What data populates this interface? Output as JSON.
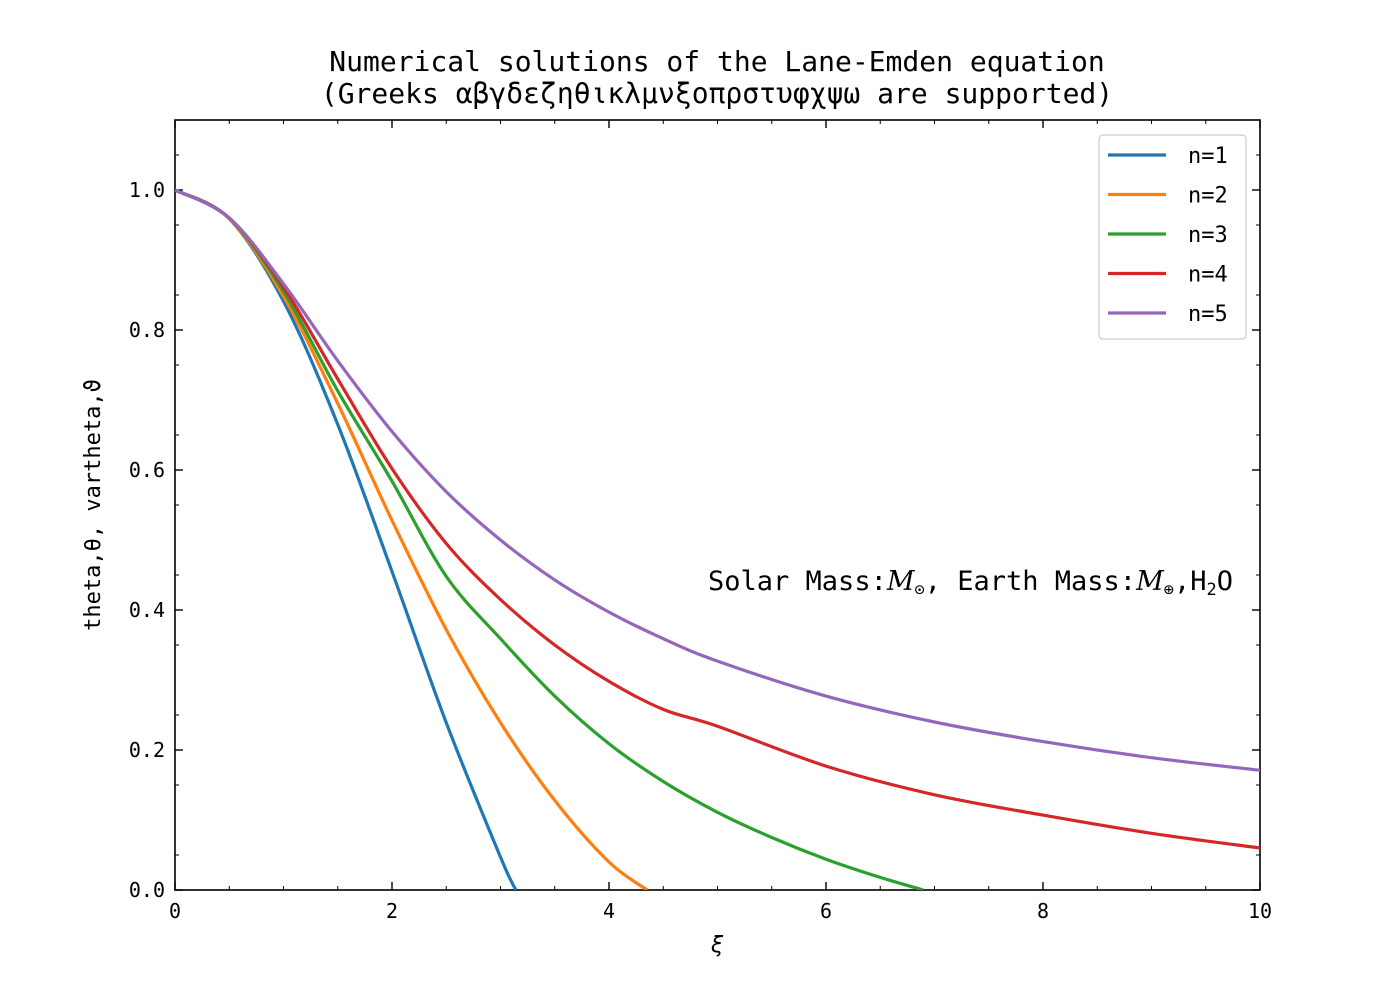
{
  "chart_data": {
    "type": "line",
    "title": "Numerical solutions of the Lane-Emden equation",
    "subtitle": "(Greeks αβγδεζηθικλμνξοπρστυφχψω are supported)",
    "xlabel": "ξ",
    "ylabel": "theta,θ, vartheta,ϑ",
    "xlim": [
      0,
      10
    ],
    "ylim": [
      0,
      1.1
    ],
    "xticks": [
      0,
      2,
      4,
      6,
      8,
      10
    ],
    "xtick_labels": [
      "0",
      "2",
      "4",
      "6",
      "8",
      "10"
    ],
    "yticks": [
      0.0,
      0.2,
      0.4,
      0.6,
      0.8,
      1.0
    ],
    "ytick_labels": [
      "0.0",
      "0.2",
      "0.4",
      "0.6",
      "0.8",
      "1.0"
    ],
    "grid": false,
    "legend_position": "top-right",
    "annotation": {
      "prefix": "Solar Mass:",
      "sun_symbol": "M",
      "sun_sub": "⊙",
      "middle": ", Earth Mass:",
      "earth_symbol": "M",
      "earth_sub": "⊕",
      "suffix_a": ",H",
      "suffix_sub": "2",
      "suffix_b": "O"
    },
    "series": [
      {
        "name": "n=1",
        "color": "#1f77b4",
        "x": [
          0,
          0.5,
          1,
          1.5,
          2,
          2.5,
          3,
          3.1416
        ],
        "y": [
          1.0,
          0.959,
          0.841,
          0.665,
          0.455,
          0.239,
          0.047,
          0.0
        ]
      },
      {
        "name": "n=2",
        "color": "#ff7f0e",
        "x": [
          0,
          0.5,
          1,
          1.5,
          2,
          2.5,
          3,
          3.5,
          4,
          4.353
        ],
        "y": [
          1.0,
          0.959,
          0.848,
          0.695,
          0.528,
          0.372,
          0.239,
          0.128,
          0.04,
          0.0
        ]
      },
      {
        "name": "n=3",
        "color": "#2ca02c",
        "x": [
          0,
          0.5,
          1,
          1.5,
          2,
          2.5,
          3,
          3.5,
          4,
          4.5,
          5,
          5.5,
          6,
          6.5,
          6.897
        ],
        "y": [
          1.0,
          0.96,
          0.855,
          0.713,
          0.584,
          0.448,
          0.359,
          0.277,
          0.209,
          0.155,
          0.111,
          0.075,
          0.044,
          0.018,
          0.0
        ]
      },
      {
        "name": "n=4",
        "color": "#d62728",
        "x": [
          0,
          0.5,
          1,
          1.5,
          2,
          2.5,
          3,
          3.5,
          4,
          4.5,
          5,
          6,
          7,
          8,
          9,
          10
        ],
        "y": [
          1.0,
          0.96,
          0.861,
          0.73,
          0.602,
          0.495,
          0.415,
          0.35,
          0.298,
          0.258,
          0.234,
          0.177,
          0.136,
          0.107,
          0.081,
          0.06
        ]
      },
      {
        "name": "n=5",
        "color": "#9467bd",
        "x": [
          0,
          0.5,
          1,
          1.5,
          2,
          2.5,
          3,
          3.5,
          4,
          4.5,
          5,
          6,
          7,
          8,
          9,
          10
        ],
        "y": [
          1.0,
          0.96,
          0.866,
          0.756,
          0.655,
          0.569,
          0.5,
          0.443,
          0.397,
          0.359,
          0.327,
          0.277,
          0.24,
          0.212,
          0.189,
          0.171
        ]
      }
    ]
  }
}
